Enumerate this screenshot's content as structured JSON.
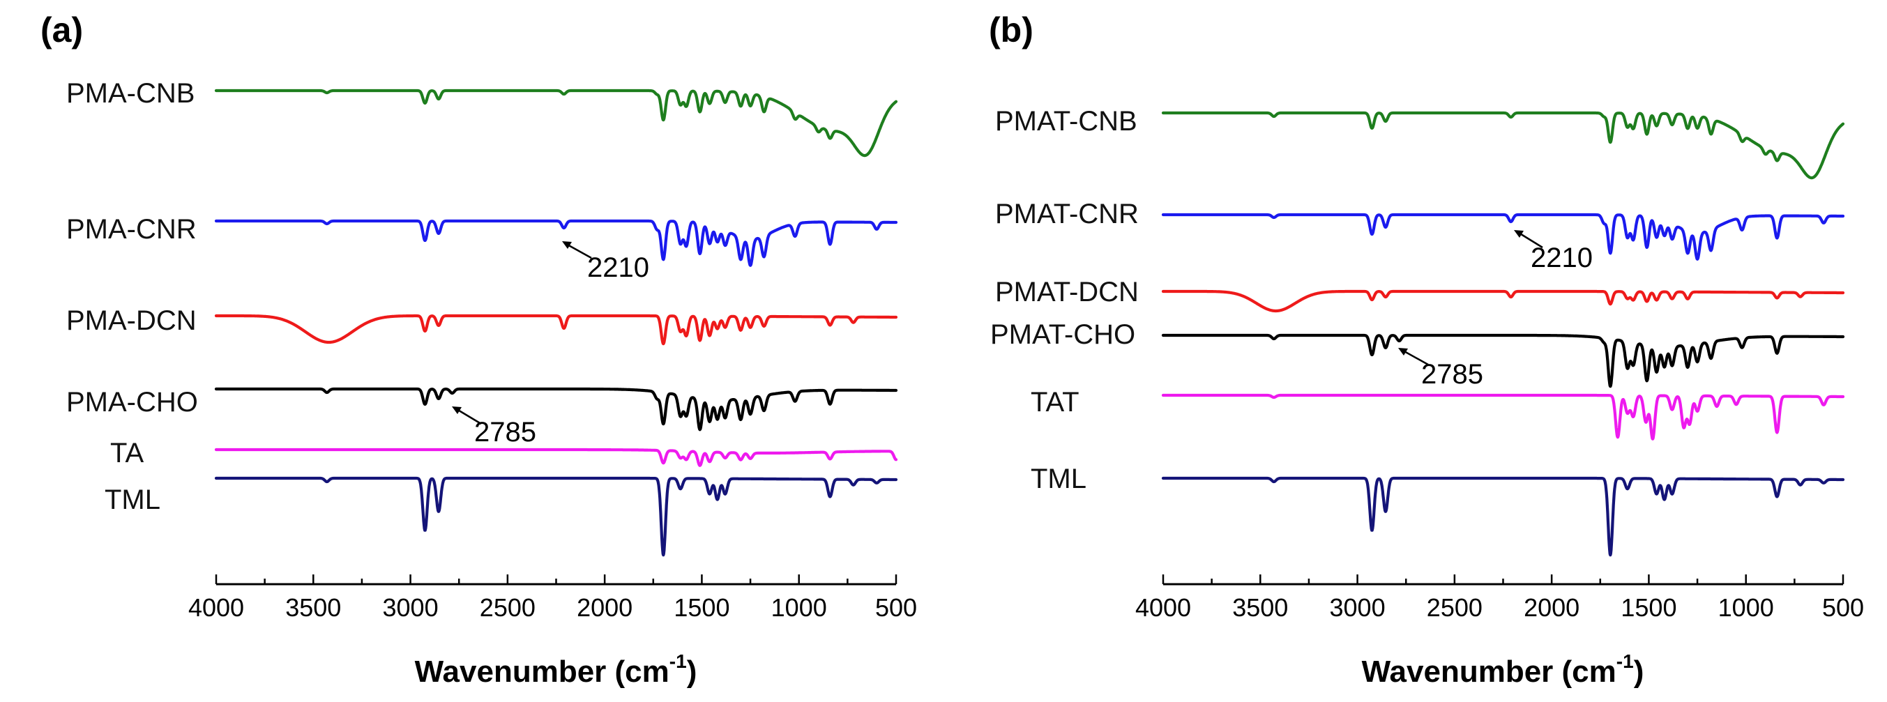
{
  "chart_data": [
    {
      "type": "line",
      "panel": "(a)",
      "xlabel": "Wavenumber (cm",
      "xlabel_sup": "-1",
      "xlim": [
        4000,
        500
      ],
      "x_reversed": true,
      "xticks": [
        4000,
        3500,
        3000,
        2500,
        2000,
        1500,
        1000,
        500
      ],
      "y_axis_visible": false,
      "series": [
        {
          "name": "PMA-CNB",
          "color": "#1e7e1e",
          "peaks": [
            [
              3430,
              3
            ],
            [
              2925,
              18
            ],
            [
              2855,
              12
            ],
            [
              2210,
              5
            ],
            [
              1730,
              5
            ],
            [
              1698,
              42
            ],
            [
              1610,
              20
            ],
            [
              1580,
              22
            ],
            [
              1510,
              30
            ],
            [
              1460,
              18
            ],
            [
              1380,
              16
            ],
            [
              1300,
              20
            ],
            [
              1250,
              18
            ],
            [
              1180,
              22
            ],
            [
              1020,
              10
            ],
            [
              900,
              8
            ],
            [
              840,
              12
            ]
          ],
          "bands": [
            [
              820,
              180,
              55
            ],
            [
              650,
              60,
              55
            ]
          ]
        },
        {
          "name": "PMA-CNR",
          "color": "#1a1aee",
          "peaks": [
            [
              3430,
              4
            ],
            [
              2925,
              28
            ],
            [
              2855,
              18
            ],
            [
              2210,
              10
            ],
            [
              1730,
              12
            ],
            [
              1698,
              55
            ],
            [
              1610,
              32
            ],
            [
              1580,
              35
            ],
            [
              1510,
              45
            ],
            [
              1460,
              28
            ],
            [
              1420,
              22
            ],
            [
              1380,
              22
            ],
            [
              1300,
              32
            ],
            [
              1250,
              38
            ],
            [
              1180,
              30
            ],
            [
              1020,
              18
            ],
            [
              840,
              32
            ],
            [
              600,
              10
            ]
          ],
          "bands": [
            [
              1250,
              110,
              25
            ]
          ]
        },
        {
          "name": "PMA-DCN",
          "color": "#ee1a1a",
          "peaks": [
            [
              2925,
              22
            ],
            [
              2855,
              14
            ],
            [
              2210,
              18
            ],
            [
              1698,
              40
            ],
            [
              1610,
              22
            ],
            [
              1580,
              28
            ],
            [
              1510,
              35
            ],
            [
              1460,
              28
            ],
            [
              1420,
              18
            ],
            [
              1380,
              16
            ],
            [
              1300,
              20
            ],
            [
              1250,
              16
            ],
            [
              1180,
              14
            ],
            [
              840,
              12
            ],
            [
              720,
              8
            ]
          ],
          "bands": [
            [
              3420,
              120,
              38
            ]
          ]
        },
        {
          "name": "PMA-CHO",
          "color": "#000000",
          "peaks": [
            [
              3430,
              5
            ],
            [
              2925,
              22
            ],
            [
              2855,
              14
            ],
            [
              2785,
              6
            ],
            [
              1730,
              10
            ],
            [
              1698,
              45
            ],
            [
              1610,
              30
            ],
            [
              1580,
              28
            ],
            [
              1510,
              45
            ],
            [
              1460,
              32
            ],
            [
              1420,
              28
            ],
            [
              1380,
              26
            ],
            [
              1300,
              30
            ],
            [
              1250,
              24
            ],
            [
              1180,
              22
            ],
            [
              1020,
              14
            ],
            [
              840,
              20
            ]
          ],
          "bands": [
            [
              1400,
              200,
              15
            ]
          ]
        },
        {
          "name": "TA",
          "color": "#ee1aee",
          "peaks": [
            [
              1698,
              18
            ],
            [
              1610,
              10
            ],
            [
              1580,
              12
            ],
            [
              1510,
              20
            ],
            [
              1460,
              14
            ],
            [
              1380,
              8
            ],
            [
              1300,
              10
            ],
            [
              1250,
              8
            ],
            [
              840,
              10
            ],
            [
              500,
              12
            ]
          ],
          "bands": [
            [
              1200,
              300,
              4
            ]
          ]
        },
        {
          "name": "TML",
          "color": "#141478",
          "peaks": [
            [
              3430,
              5
            ],
            [
              2925,
              75
            ],
            [
              2855,
              48
            ],
            [
              1698,
              110
            ],
            [
              1610,
              15
            ],
            [
              1460,
              22
            ],
            [
              1420,
              30
            ],
            [
              1380,
              22
            ],
            [
              840,
              25
            ],
            [
              720,
              8
            ],
            [
              600,
              5
            ]
          ],
          "bands": []
        }
      ],
      "annotations": [
        {
          "text": "2210",
          "x": 2210,
          "series": "PMA-CNR"
        },
        {
          "text": "2785",
          "x": 2785,
          "series": "PMA-CHO"
        }
      ]
    },
    {
      "type": "line",
      "panel": "(b)",
      "xlabel": "Wavenumber (cm",
      "xlabel_sup": "-1",
      "xlim": [
        4000,
        500
      ],
      "x_reversed": true,
      "xticks": [
        4000,
        3500,
        3000,
        2500,
        2000,
        1500,
        1000,
        500
      ],
      "y_axis_visible": false,
      "series": [
        {
          "name": "PMAT-CNB",
          "color": "#1e7e1e",
          "peaks": [
            [
              3430,
              5
            ],
            [
              2925,
              22
            ],
            [
              2855,
              12
            ],
            [
              2210,
              6
            ],
            [
              1730,
              5
            ],
            [
              1698,
              42
            ],
            [
              1610,
              20
            ],
            [
              1580,
              22
            ],
            [
              1510,
              30
            ],
            [
              1460,
              18
            ],
            [
              1380,
              16
            ],
            [
              1300,
              20
            ],
            [
              1250,
              18
            ],
            [
              1180,
              22
            ],
            [
              1020,
              10
            ],
            [
              900,
              8
            ],
            [
              840,
              12
            ]
          ],
          "bands": [
            [
              820,
              180,
              55
            ],
            [
              650,
              60,
              55
            ]
          ]
        },
        {
          "name": "PMAT-CNR",
          "color": "#1a1aee",
          "peaks": [
            [
              3430,
              4
            ],
            [
              2925,
              28
            ],
            [
              2855,
              18
            ],
            [
              2210,
              10
            ],
            [
              1730,
              12
            ],
            [
              1698,
              55
            ],
            [
              1610,
              32
            ],
            [
              1580,
              35
            ],
            [
              1510,
              45
            ],
            [
              1460,
              28
            ],
            [
              1420,
              22
            ],
            [
              1380,
              22
            ],
            [
              1300,
              32
            ],
            [
              1250,
              38
            ],
            [
              1180,
              30
            ],
            [
              1020,
              18
            ],
            [
              840,
              32
            ],
            [
              600,
              10
            ]
          ],
          "bands": [
            [
              1250,
              110,
              25
            ]
          ]
        },
        {
          "name": "PMAT-DCN",
          "color": "#ee1a1a",
          "peaks": [
            [
              2925,
              12
            ],
            [
              2855,
              8
            ],
            [
              2210,
              8
            ],
            [
              1698,
              18
            ],
            [
              1610,
              10
            ],
            [
              1580,
              12
            ],
            [
              1510,
              14
            ],
            [
              1460,
              12
            ],
            [
              1380,
              10
            ],
            [
              1300,
              10
            ],
            [
              840,
              8
            ],
            [
              720,
              6
            ]
          ],
          "bands": [
            [
              3420,
              100,
              28
            ]
          ]
        },
        {
          "name": "PMAT-CHO",
          "color": "#000000",
          "peaks": [
            [
              3430,
              5
            ],
            [
              2925,
              28
            ],
            [
              2855,
              18
            ],
            [
              2785,
              8
            ],
            [
              1730,
              6
            ],
            [
              1698,
              68
            ],
            [
              1610,
              38
            ],
            [
              1580,
              32
            ],
            [
              1510,
              52
            ],
            [
              1460,
              38
            ],
            [
              1420,
              30
            ],
            [
              1380,
              28
            ],
            [
              1300,
              32
            ],
            [
              1250,
              26
            ],
            [
              1180,
              24
            ],
            [
              1020,
              14
            ],
            [
              840,
              24
            ]
          ],
          "bands": [
            [
              1400,
              200,
              15
            ]
          ]
        },
        {
          "name": "TAT",
          "color": "#ee1aee",
          "peaks": [
            [
              3430,
              3
            ],
            [
              1660,
              60
            ],
            [
              1610,
              25
            ],
            [
              1580,
              30
            ],
            [
              1515,
              38
            ],
            [
              1480,
              62
            ],
            [
              1380,
              20
            ],
            [
              1320,
              45
            ],
            [
              1290,
              40
            ],
            [
              1250,
              22
            ],
            [
              1150,
              15
            ],
            [
              1050,
              12
            ],
            [
              840,
              52
            ],
            [
              600,
              12
            ]
          ],
          "bands": []
        },
        {
          "name": "TML",
          "color": "#141478",
          "peaks": [
            [
              3430,
              5
            ],
            [
              2925,
              75
            ],
            [
              2855,
              48
            ],
            [
              1698,
              110
            ],
            [
              1610,
              15
            ],
            [
              1460,
              22
            ],
            [
              1420,
              30
            ],
            [
              1380,
              22
            ],
            [
              840,
              25
            ],
            [
              720,
              8
            ],
            [
              600,
              5
            ]
          ],
          "bands": []
        }
      ],
      "annotations": [
        {
          "text": "2210",
          "x": 2210,
          "series": "PMAT-CNR"
        },
        {
          "text": "2785",
          "x": 2785,
          "series": "PMAT-CHO"
        }
      ]
    }
  ]
}
